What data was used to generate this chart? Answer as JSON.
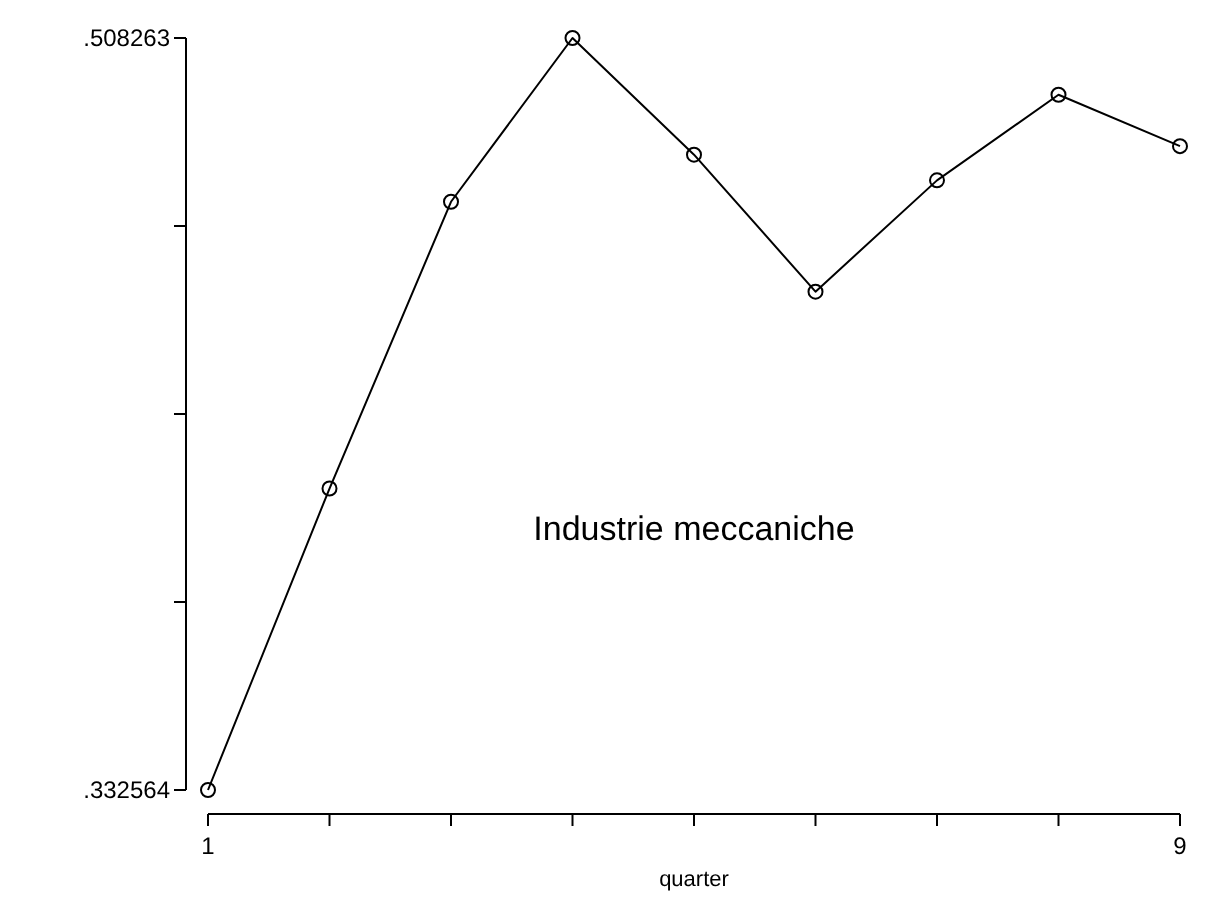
{
  "chart_data": {
    "type": "line",
    "xlabel": "quarter",
    "x": [
      1,
      2,
      3,
      4,
      5,
      6,
      7,
      8,
      9
    ],
    "series": [
      {
        "color": "#000000",
        "values": [
          0.332564,
          0.403,
          0.47,
          0.508263,
          0.481,
          0.449,
          0.475,
          0.495,
          0.483
        ]
      }
    ],
    "xlim": [
      1,
      9
    ],
    "xticks": [
      1,
      {
        "value": 2,
        "label": null
      },
      {
        "value": 3,
        "label": null
      },
      {
        "value": 4,
        "label": null
      },
      {
        "value": 5,
        "label": null
      },
      {
        "value": 6,
        "label": null
      },
      {
        "value": 7,
        "label": null
      },
      {
        "value": 8,
        "label": null
      },
      9
    ],
    "ylim": [
      0.332564,
      0.508263
    ],
    "yticks": [
      {
        "value": 0.332564,
        "label": ".332564"
      },
      {
        "value": 0.376489,
        "label": null
      },
      {
        "value": 0.420414,
        "label": null
      },
      {
        "value": 0.464338,
        "label": null
      },
      {
        "value": 0.508263,
        "label": ".508263"
      }
    ],
    "annotations": [
      "Industrie meccaniche"
    ],
    "marker": "circle",
    "line_style": "solid"
  }
}
